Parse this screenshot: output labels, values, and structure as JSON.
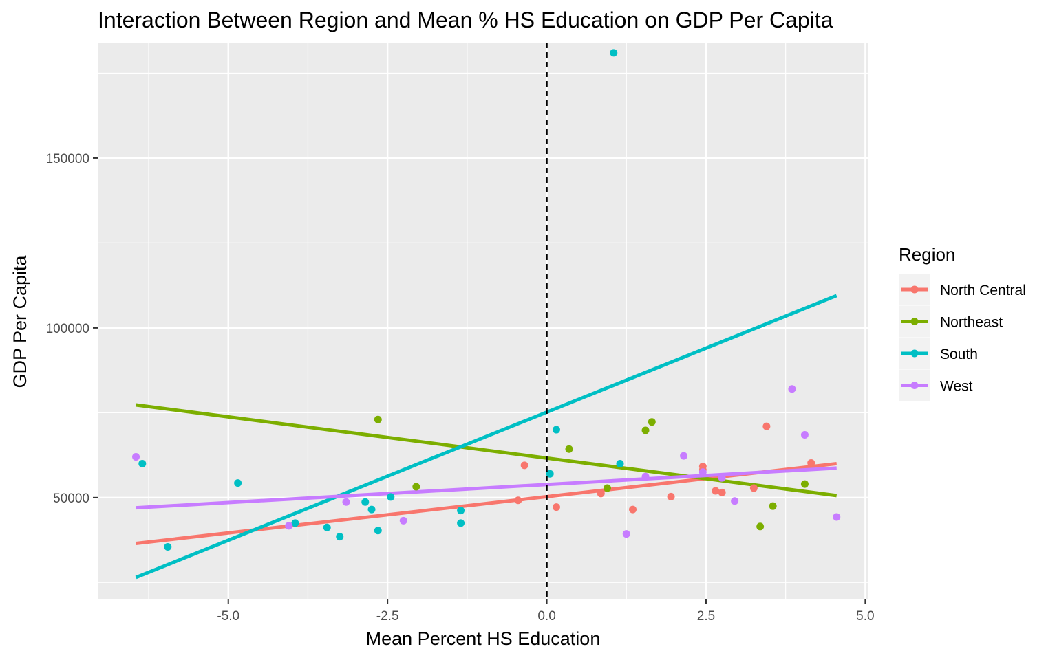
{
  "chart_data": {
    "type": "scatter",
    "title": "Interaction Between Region and Mean % HS Education on GDP Per Capita",
    "xlabel": "Mean Percent HS Education",
    "ylabel": "GDP Per Capita",
    "xlim": [
      -7.05,
      5.05
    ],
    "ylim": [
      20000,
      184000
    ],
    "x_ticks": [
      -5.0,
      -2.5,
      0.0,
      2.5,
      5.0
    ],
    "x_tick_labels": [
      "-5.0",
      "-2.5",
      "0.0",
      "2.5",
      "5.0"
    ],
    "y_ticks": [
      50000,
      100000,
      150000
    ],
    "y_tick_labels": [
      "50000",
      "100000",
      "150000"
    ],
    "y_minor_ticks": [
      25000,
      75000,
      125000,
      175000
    ],
    "x_minor_ticks": [
      -6.25,
      -3.75,
      -1.25,
      1.25,
      3.75
    ],
    "vline": {
      "x": 0,
      "style": "dashed",
      "color": "#000000"
    },
    "grid": true,
    "panel_background": "#EBEBEB",
    "legend": {
      "title": "Region",
      "position": "right"
    },
    "series": [
      {
        "name": "North Central",
        "color": "#F8766D",
        "points": [
          [
            -0.35,
            59500
          ],
          [
            -0.45,
            49200
          ],
          [
            0.15,
            47200
          ],
          [
            0.85,
            51200
          ],
          [
            1.35,
            46500
          ],
          [
            1.95,
            50300
          ],
          [
            2.45,
            59200
          ],
          [
            2.45,
            58200
          ],
          [
            2.65,
            52000
          ],
          [
            2.75,
            51500
          ],
          [
            3.25,
            52800
          ],
          [
            3.45,
            71000
          ],
          [
            4.15,
            60200
          ]
        ],
        "fit": {
          "x": [
            -6.45,
            4.55
          ],
          "y": [
            36500,
            60000
          ]
        }
      },
      {
        "name": "Northeast",
        "color": "#7CAE00",
        "points": [
          [
            -2.65,
            73000
          ],
          [
            -2.05,
            53200
          ],
          [
            0.35,
            64300
          ],
          [
            0.95,
            52800
          ],
          [
            1.55,
            69800
          ],
          [
            1.65,
            72300
          ],
          [
            3.35,
            41500
          ],
          [
            3.55,
            47500
          ],
          [
            4.05,
            54000
          ]
        ],
        "fit": {
          "x": [
            -6.45,
            4.55
          ],
          "y": [
            77300,
            50600
          ]
        }
      },
      {
        "name": "South",
        "color": "#00BFC4",
        "points": [
          [
            -6.35,
            60000
          ],
          [
            -5.95,
            35500
          ],
          [
            -4.85,
            54300
          ],
          [
            -3.95,
            42500
          ],
          [
            -3.45,
            41200
          ],
          [
            -3.25,
            38500
          ],
          [
            -2.85,
            48700
          ],
          [
            -2.75,
            46500
          ],
          [
            -2.65,
            40300
          ],
          [
            -2.45,
            50200
          ],
          [
            -1.35,
            46200
          ],
          [
            -1.35,
            42500
          ],
          [
            0.05,
            57000
          ],
          [
            0.15,
            70000
          ],
          [
            1.05,
            181000
          ],
          [
            1.15,
            60000
          ]
        ],
        "fit": {
          "x": [
            -6.45,
            4.55
          ],
          "y": [
            26500,
            109500
          ]
        }
      },
      {
        "name": "West",
        "color": "#C77CFF",
        "points": [
          [
            -6.45,
            62000
          ],
          [
            -4.05,
            41700
          ],
          [
            -3.15,
            48700
          ],
          [
            -2.25,
            43200
          ],
          [
            1.25,
            39300
          ],
          [
            1.55,
            56200
          ],
          [
            2.15,
            62300
          ],
          [
            2.45,
            57500
          ],
          [
            2.75,
            55800
          ],
          [
            2.95,
            49000
          ],
          [
            3.85,
            82000
          ],
          [
            4.05,
            68500
          ],
          [
            4.55,
            44300
          ]
        ],
        "fit": {
          "x": [
            -6.45,
            4.55
          ],
          "y": [
            47000,
            58700
          ]
        }
      }
    ]
  }
}
